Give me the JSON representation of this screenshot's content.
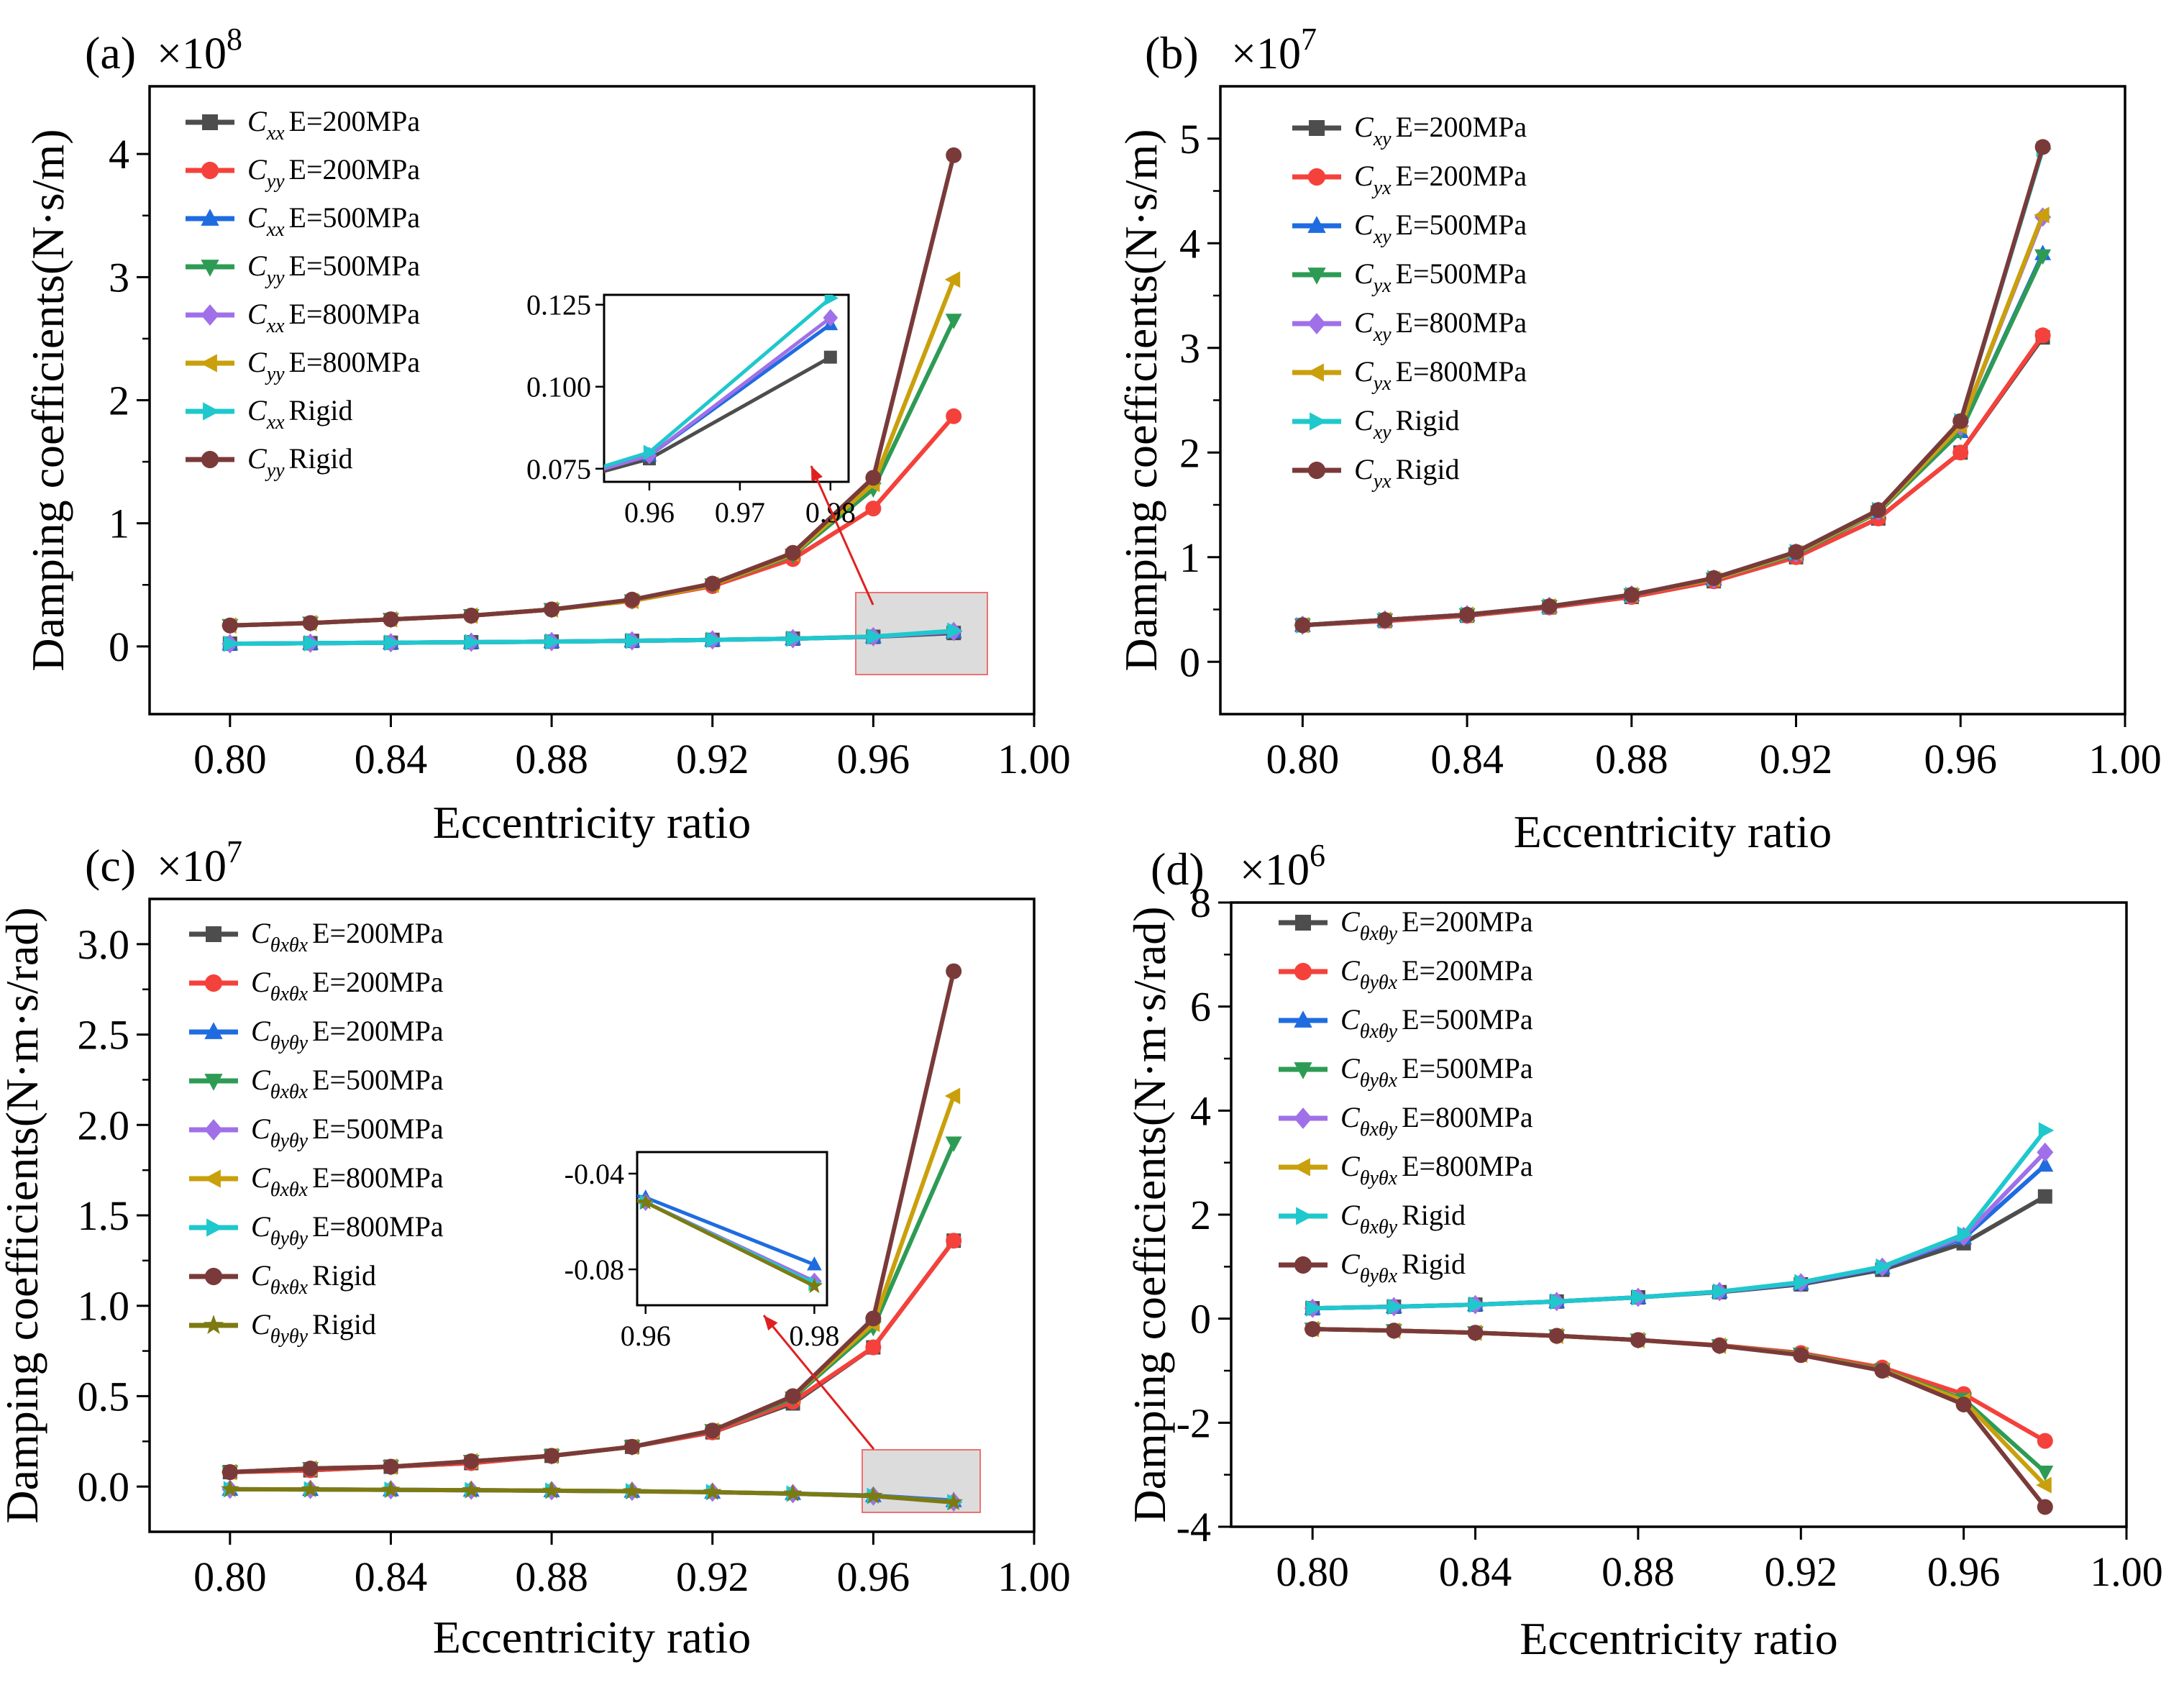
{
  "chart_data": [
    {
      "panel": "(a)",
      "type": "line",
      "multiplier": "×10^8",
      "xlabel": "Eccentricity ratio",
      "ylabel": "Damping coefficients(N·s/m)",
      "xlim": [
        0.78,
        1.0
      ],
      "ylim": [
        -0.55,
        4.55
      ],
      "xticks": [
        "0.80",
        "0.84",
        "0.88",
        "0.92",
        "0.96",
        "1.00"
      ],
      "yticks": [
        "0",
        "1",
        "2",
        "3",
        "4"
      ],
      "x": [
        0.8,
        0.82,
        0.84,
        0.86,
        0.88,
        0.9,
        0.92,
        0.94,
        0.96,
        0.98
      ],
      "series": [
        {
          "name": "C",
          "sub": "xx",
          "cond": "E=200MPa",
          "color": "#4d4d4d",
          "marker": "square",
          "values": [
            0.022,
            0.026,
            0.03,
            0.034,
            0.039,
            0.045,
            0.053,
            0.063,
            0.078,
            0.109
          ]
        },
        {
          "name": "C",
          "sub": "yy",
          "cond": "E=200MPa",
          "color": "#f5413b",
          "marker": "circle",
          "values": [
            0.17,
            0.19,
            0.22,
            0.25,
            0.3,
            0.37,
            0.49,
            0.71,
            1.12,
            1.87
          ]
        },
        {
          "name": "C",
          "sub": "xx",
          "cond": "E=500MPa",
          "color": "#1f6ce0",
          "marker": "triangle-up",
          "values": [
            0.022,
            0.026,
            0.03,
            0.034,
            0.039,
            0.045,
            0.053,
            0.063,
            0.079,
            0.119
          ]
        },
        {
          "name": "C",
          "sub": "yy",
          "cond": "E=500MPa",
          "color": "#2e9b55",
          "marker": "triangle-down",
          "values": [
            0.17,
            0.19,
            0.22,
            0.25,
            0.3,
            0.37,
            0.5,
            0.74,
            1.28,
            2.65
          ]
        },
        {
          "name": "C",
          "sub": "xx",
          "cond": "E=800MPa",
          "color": "#a070e8",
          "marker": "diamond",
          "values": [
            0.022,
            0.026,
            0.03,
            0.034,
            0.039,
            0.045,
            0.053,
            0.063,
            0.079,
            0.121
          ]
        },
        {
          "name": "C",
          "sub": "yy",
          "cond": "E=800MPa",
          "color": "#c9a00c",
          "marker": "triangle-left",
          "values": [
            0.17,
            0.19,
            0.22,
            0.25,
            0.3,
            0.37,
            0.5,
            0.75,
            1.32,
            2.98
          ]
        },
        {
          "name": "C",
          "sub": "xx",
          "cond": "Rigid",
          "color": "#1fc8cc",
          "marker": "triangle-right",
          "values": [
            0.022,
            0.026,
            0.03,
            0.034,
            0.039,
            0.045,
            0.053,
            0.063,
            0.08,
            0.127
          ]
        },
        {
          "name": "C",
          "sub": "yy",
          "cond": "Rigid",
          "color": "#7a3a3a",
          "marker": "circle",
          "values": [
            0.17,
            0.19,
            0.22,
            0.25,
            0.3,
            0.38,
            0.51,
            0.76,
            1.37,
            3.99
          ]
        }
      ],
      "inset": {
        "xlim": [
          0.955,
          0.982
        ],
        "ylim": [
          0.071,
          0.128
        ],
        "xticks": [
          "0.96",
          "0.97",
          "0.98"
        ],
        "yticks": [
          "0.075",
          "0.100",
          "0.125"
        ],
        "series_indices": [
          0,
          2,
          4,
          6
        ]
      }
    },
    {
      "panel": "(b)",
      "type": "line",
      "multiplier": "×10^7",
      "xlabel": "Eccentricity ratio",
      "ylabel": "Damping coefficients(N·s/m)",
      "xlim": [
        0.78,
        1.0
      ],
      "ylim": [
        -0.5,
        5.5
      ],
      "xticks": [
        "0.80",
        "0.84",
        "0.88",
        "0.92",
        "0.96",
        "1.00"
      ],
      "yticks": [
        "0",
        "1",
        "2",
        "3",
        "4",
        "5"
      ],
      "x": [
        0.8,
        0.82,
        0.84,
        0.86,
        0.88,
        0.9,
        0.92,
        0.94,
        0.96,
        0.98
      ],
      "series": [
        {
          "name": "C",
          "sub": "xy",
          "cond": "E=200MPa",
          "color": "#4d4d4d",
          "marker": "square",
          "values": [
            0.35,
            0.39,
            0.44,
            0.52,
            0.62,
            0.77,
            1.0,
            1.37,
            2.0,
            3.1
          ]
        },
        {
          "name": "C",
          "sub": "yx",
          "cond": "E=200MPa",
          "color": "#f5413b",
          "marker": "circle",
          "values": [
            0.35,
            0.39,
            0.44,
            0.52,
            0.62,
            0.77,
            1.0,
            1.37,
            2.0,
            3.12
          ]
        },
        {
          "name": "C",
          "sub": "xy",
          "cond": "E=500MPa",
          "color": "#1f6ce0",
          "marker": "triangle-up",
          "values": [
            0.35,
            0.4,
            0.45,
            0.53,
            0.64,
            0.79,
            1.03,
            1.43,
            2.2,
            3.9
          ]
        },
        {
          "name": "C",
          "sub": "yx",
          "cond": "E=500MPa",
          "color": "#2e9b55",
          "marker": "triangle-down",
          "values": [
            0.35,
            0.4,
            0.45,
            0.53,
            0.64,
            0.79,
            1.03,
            1.43,
            2.2,
            3.88
          ]
        },
        {
          "name": "C",
          "sub": "xy",
          "cond": "E=800MPa",
          "color": "#a070e8",
          "marker": "diamond",
          "values": [
            0.35,
            0.4,
            0.45,
            0.53,
            0.64,
            0.79,
            1.04,
            1.44,
            2.25,
            4.25
          ]
        },
        {
          "name": "C",
          "sub": "yx",
          "cond": "E=800MPa",
          "color": "#c9a00c",
          "marker": "triangle-left",
          "values": [
            0.35,
            0.4,
            0.45,
            0.53,
            0.64,
            0.79,
            1.04,
            1.44,
            2.25,
            4.27
          ]
        },
        {
          "name": "C",
          "sub": "xy",
          "cond": "Rigid",
          "color": "#1fc8cc",
          "marker": "triangle-right",
          "values": [
            0.35,
            0.4,
            0.45,
            0.53,
            0.64,
            0.8,
            1.05,
            1.45,
            2.3,
            4.9
          ]
        },
        {
          "name": "C",
          "sub": "yx",
          "cond": "Rigid",
          "color": "#7a3a3a",
          "marker": "circle",
          "values": [
            0.35,
            0.4,
            0.45,
            0.53,
            0.64,
            0.8,
            1.05,
            1.45,
            2.3,
            4.92
          ]
        }
      ]
    },
    {
      "panel": "(c)",
      "type": "line",
      "multiplier": "×10^7",
      "xlabel": "Eccentricity ratio",
      "ylabel": "Damping coefficients(N·m·s/rad)",
      "xlim": [
        0.78,
        1.0
      ],
      "ylim": [
        -0.25,
        3.25
      ],
      "xticks": [
        "0.80",
        "0.84",
        "0.88",
        "0.92",
        "0.96",
        "1.00"
      ],
      "yticks": [
        "0.0",
        "0.5",
        "1.0",
        "1.5",
        "2.0",
        "2.5",
        "3.0"
      ],
      "x": [
        0.8,
        0.82,
        0.84,
        0.86,
        0.88,
        0.9,
        0.92,
        0.94,
        0.96,
        0.98
      ],
      "series": [
        {
          "name": "C",
          "sub": "θxθx",
          "cond": "E=200MPa",
          "color": "#4d4d4d",
          "marker": "square",
          "values": [
            0.08,
            0.09,
            0.11,
            0.13,
            0.17,
            0.22,
            0.3,
            0.46,
            0.77,
            1.36
          ]
        },
        {
          "name": "C",
          "sub": "θxθx",
          "cond": "E=200MPa",
          "color": "#f5413b",
          "marker": "circle",
          "values": [
            0.08,
            0.09,
            0.11,
            0.13,
            0.17,
            0.22,
            0.3,
            0.47,
            0.77,
            1.36
          ]
        },
        {
          "name": "C",
          "sub": "θyθy",
          "cond": "E=200MPa",
          "color": "#1f6ce0",
          "marker": "triangle-up",
          "values": [
            -0.015,
            -0.016,
            -0.018,
            -0.02,
            -0.023,
            -0.026,
            -0.031,
            -0.038,
            -0.05,
            -0.078
          ]
        },
        {
          "name": "C",
          "sub": "θxθx",
          "cond": "E=500MPa",
          "color": "#2e9b55",
          "marker": "triangle-down",
          "values": [
            0.08,
            0.1,
            0.11,
            0.14,
            0.17,
            0.22,
            0.31,
            0.49,
            0.88,
            1.9
          ]
        },
        {
          "name": "C",
          "sub": "θyθy",
          "cond": "E=500MPa",
          "color": "#a070e8",
          "marker": "diamond",
          "values": [
            -0.015,
            -0.016,
            -0.018,
            -0.02,
            -0.023,
            -0.026,
            -0.031,
            -0.039,
            -0.052,
            -0.085
          ]
        },
        {
          "name": "C",
          "sub": "θxθx",
          "cond": "E=800MPa",
          "color": "#c9a00c",
          "marker": "triangle-left",
          "values": [
            0.08,
            0.1,
            0.11,
            0.14,
            0.17,
            0.22,
            0.31,
            0.5,
            0.9,
            2.16
          ]
        },
        {
          "name": "C",
          "sub": "θyθy",
          "cond": "E=800MPa",
          "color": "#1fc8cc",
          "marker": "triangle-right",
          "values": [
            -0.015,
            -0.016,
            -0.018,
            -0.02,
            -0.023,
            -0.026,
            -0.031,
            -0.039,
            -0.052,
            -0.086
          ]
        },
        {
          "name": "C",
          "sub": "θxθx",
          "cond": "Rigid",
          "color": "#7a3a3a",
          "marker": "circle",
          "values": [
            0.08,
            0.1,
            0.11,
            0.14,
            0.17,
            0.22,
            0.31,
            0.5,
            0.93,
            2.85
          ]
        },
        {
          "name": "C",
          "sub": "θyθy",
          "cond": "Rigid",
          "color": "#7e7a12",
          "marker": "star",
          "values": [
            -0.015,
            -0.016,
            -0.018,
            -0.02,
            -0.023,
            -0.026,
            -0.031,
            -0.039,
            -0.052,
            -0.087
          ]
        }
      ],
      "inset": {
        "xlim": [
          0.959,
          0.9815
        ],
        "ylim": [
          -0.095,
          -0.031
        ],
        "xticks": [
          "0.96",
          "0.98"
        ],
        "yticks": [
          "-0.04",
          "-0.08"
        ],
        "series_indices": [
          2,
          4,
          6,
          8
        ]
      }
    },
    {
      "panel": "(d)",
      "type": "line",
      "multiplier": "×10^6",
      "xlabel": "Eccentricity ratio",
      "ylabel": "Damping coefficients(N·m·s/rad)",
      "xlim": [
        0.78,
        1.0
      ],
      "ylim": [
        -4,
        8
      ],
      "xticks": [
        "0.80",
        "0.84",
        "0.88",
        "0.92",
        "0.96",
        "1.00"
      ],
      "yticks": [
        "-4",
        "-2",
        "0",
        "2",
        "4",
        "6",
        "8"
      ],
      "x": [
        0.8,
        0.82,
        0.84,
        0.86,
        0.88,
        0.9,
        0.92,
        0.94,
        0.96,
        0.98
      ],
      "series": [
        {
          "name": "C",
          "sub": "θxθy",
          "cond": "E=200MPa",
          "color": "#4d4d4d",
          "marker": "square",
          "values": [
            0.2,
            0.23,
            0.27,
            0.33,
            0.41,
            0.51,
            0.66,
            0.94,
            1.45,
            2.35
          ]
        },
        {
          "name": "C",
          "sub": "θyθx",
          "cond": "E=200MPa",
          "color": "#f5413b",
          "marker": "circle",
          "values": [
            -0.2,
            -0.23,
            -0.27,
            -0.33,
            -0.41,
            -0.51,
            -0.66,
            -0.94,
            -1.45,
            -2.35
          ]
        },
        {
          "name": "C",
          "sub": "θxθy",
          "cond": "E=500MPa",
          "color": "#1f6ce0",
          "marker": "triangle-up",
          "values": [
            0.2,
            0.23,
            0.27,
            0.33,
            0.41,
            0.52,
            0.68,
            0.98,
            1.55,
            2.95
          ]
        },
        {
          "name": "C",
          "sub": "θyθx",
          "cond": "E=500MPa",
          "color": "#2e9b55",
          "marker": "triangle-down",
          "values": [
            -0.2,
            -0.23,
            -0.27,
            -0.33,
            -0.41,
            -0.52,
            -0.68,
            -0.98,
            -1.55,
            -2.95
          ]
        },
        {
          "name": "C",
          "sub": "θxθy",
          "cond": "E=800MPa",
          "color": "#a070e8",
          "marker": "diamond",
          "values": [
            0.2,
            0.23,
            0.27,
            0.33,
            0.41,
            0.52,
            0.69,
            0.99,
            1.58,
            3.2
          ]
        },
        {
          "name": "C",
          "sub": "θyθx",
          "cond": "E=800MPa",
          "color": "#c9a00c",
          "marker": "triangle-left",
          "values": [
            -0.2,
            -0.23,
            -0.27,
            -0.33,
            -0.41,
            -0.52,
            -0.69,
            -0.99,
            -1.58,
            -3.2
          ]
        },
        {
          "name": "C",
          "sub": "θxθy",
          "cond": "Rigid",
          "color": "#1fc8cc",
          "marker": "triangle-right",
          "values": [
            0.2,
            0.23,
            0.27,
            0.33,
            0.41,
            0.52,
            0.7,
            1.0,
            1.62,
            3.62
          ]
        },
        {
          "name": "C",
          "sub": "θyθx",
          "cond": "Rigid",
          "color": "#7a3a3a",
          "marker": "circle",
          "values": [
            -0.2,
            -0.23,
            -0.27,
            -0.33,
            -0.41,
            -0.52,
            -0.7,
            -1.0,
            -1.65,
            -3.62
          ]
        }
      ]
    }
  ]
}
